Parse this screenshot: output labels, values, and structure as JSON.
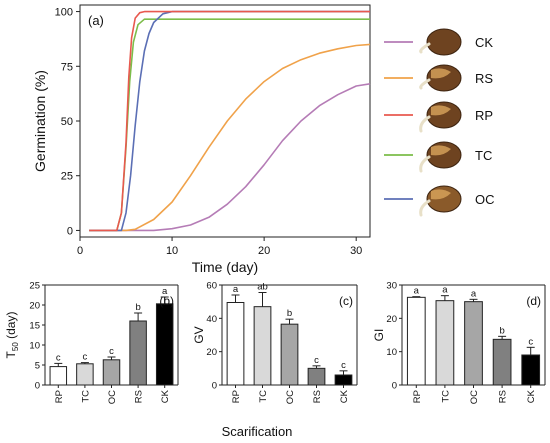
{
  "chart_data": [
    {
      "panel": "(a)",
      "type": "line",
      "xlabel": "Time (day)",
      "ylabel": "Germination (%)",
      "xlim": [
        0,
        31.5
      ],
      "ylim": [
        -3,
        103
      ],
      "xticks": [
        0,
        10,
        20,
        30
      ],
      "yticks": [
        0,
        25,
        50,
        75,
        100
      ],
      "grid": false,
      "legend_position": "right",
      "series": [
        {
          "name": "CK",
          "color": "#b57cb6",
          "x": [
            1,
            8,
            10,
            12,
            14,
            16,
            18,
            20,
            22,
            24,
            26,
            28,
            30,
            31.5
          ],
          "y": [
            0,
            0,
            0.8,
            2.5,
            6,
            12,
            20,
            30,
            41,
            50,
            57,
            62,
            66,
            67
          ]
        },
        {
          "name": "RS",
          "color": "#f0a24a",
          "x": [
            1,
            5,
            6,
            8,
            10,
            12,
            14,
            16,
            18,
            20,
            22,
            24,
            26,
            28,
            30,
            31.5
          ],
          "y": [
            0,
            0,
            0.5,
            5,
            13,
            25,
            38,
            50,
            60,
            68,
            74,
            78,
            81,
            83,
            84.5,
            85
          ]
        },
        {
          "name": "RP",
          "color": "#e8594f",
          "x": [
            1,
            4,
            4.5,
            5,
            5.3,
            5.6,
            6,
            6.5,
            7,
            31.5
          ],
          "y": [
            0,
            0,
            8,
            40,
            70,
            88,
            97,
            99.5,
            100,
            100
          ]
        },
        {
          "name": "TC",
          "color": "#7cbd4a",
          "x": [
            1,
            4,
            4.5,
            5,
            5.4,
            5.8,
            6.3,
            7,
            31.5
          ],
          "y": [
            0,
            0,
            8,
            38,
            68,
            86,
            94,
            96.5,
            96.5
          ]
        },
        {
          "name": "OC",
          "color": "#5b6fb5",
          "x": [
            1,
            4.5,
            5,
            5.5,
            6,
            6.5,
            7,
            7.5,
            8,
            9,
            10,
            31.5
          ],
          "y": [
            0,
            0,
            8,
            25,
            48,
            68,
            82,
            90,
            95,
            99,
            100,
            100
          ]
        }
      ],
      "panel_label": "(a)"
    },
    {
      "panel": "(b)",
      "type": "bar",
      "ylabel": "T50 (day)",
      "ylabel_main": "T",
      "ylabel_sub": "50",
      "ylabel_unit": " (day)",
      "categories": [
        "RP",
        "TC",
        "OC",
        "RS",
        "CK"
      ],
      "values": [
        4.6,
        5.3,
        6.3,
        16.0,
        20.3
      ],
      "errors": [
        0.8,
        0.3,
        0.7,
        2.0,
        1.7
      ],
      "letters": [
        "c",
        "c",
        "c",
        "b",
        "a"
      ],
      "fills": [
        "#ffffff",
        "#d9d9d9",
        "#a6a6a6",
        "#808080",
        "#000000"
      ],
      "ylim": [
        0,
        25
      ],
      "yticks": [
        0,
        5,
        10,
        15,
        20,
        25
      ],
      "panel_label": "(b)"
    },
    {
      "panel": "(c)",
      "type": "bar",
      "ylabel": "GV",
      "categories": [
        "RP",
        "TC",
        "OC",
        "RS",
        "CK"
      ],
      "values": [
        49.5,
        47.0,
        36.5,
        10.0,
        6.0
      ],
      "errors": [
        4.5,
        8.5,
        3.0,
        1.5,
        2.5
      ],
      "letters": [
        "a",
        "ab",
        "b",
        "c",
        "c"
      ],
      "fills": [
        "#ffffff",
        "#d9d9d9",
        "#a6a6a6",
        "#808080",
        "#000000"
      ],
      "ylim": [
        0,
        60
      ],
      "yticks": [
        0,
        20,
        40,
        60
      ],
      "panel_label": "(c)"
    },
    {
      "panel": "(d)",
      "type": "bar",
      "ylabel": "GI",
      "categories": [
        "RP",
        "TC",
        "OC",
        "RS",
        "CK"
      ],
      "values": [
        26.3,
        25.3,
        25.0,
        13.7,
        9.0
      ],
      "errors": [
        0.2,
        1.5,
        0.7,
        0.9,
        2.3
      ],
      "letters": [
        "a",
        "a",
        "a",
        "b",
        "c"
      ],
      "fills": [
        "#ffffff",
        "#d9d9d9",
        "#a6a6a6",
        "#808080",
        "#000000"
      ],
      "ylim": [
        0,
        30
      ],
      "yticks": [
        0,
        10,
        20,
        30
      ],
      "panel_label": "(d)"
    }
  ],
  "shared_xlabel": "Scarification"
}
